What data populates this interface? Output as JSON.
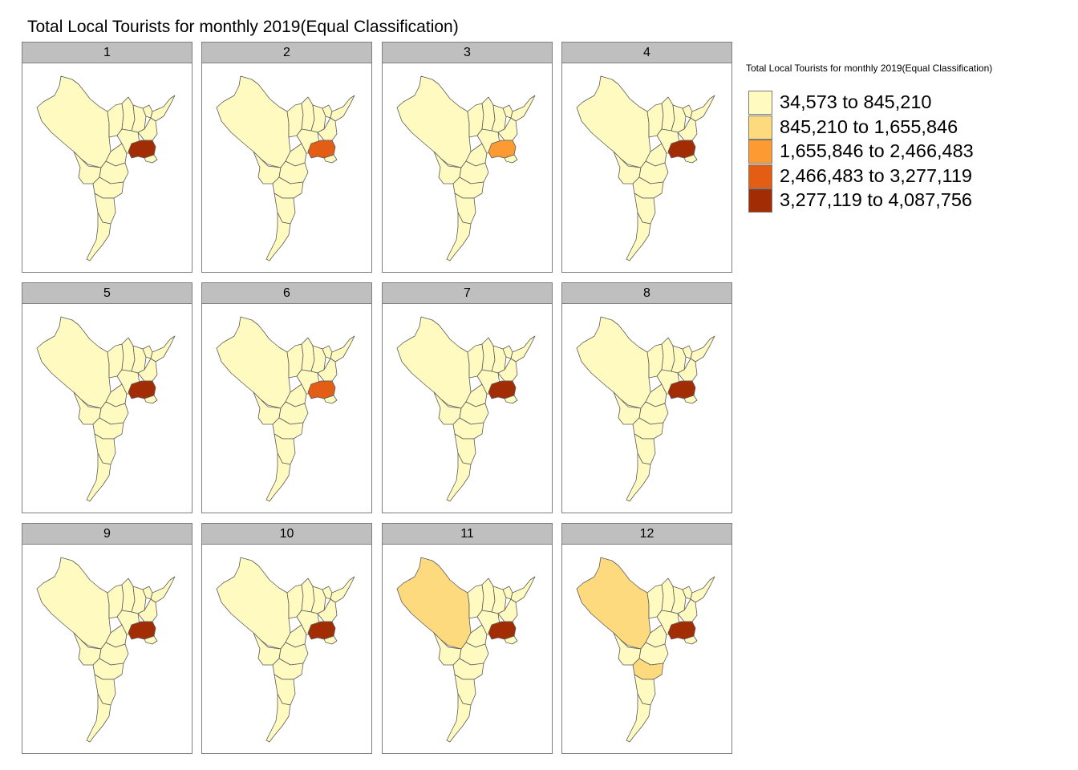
{
  "title": "Total Local Tourists for monthly 2019(Equal Classification)",
  "legend": {
    "title": "Total Local Tourists for monthly 2019(Equal Classification)",
    "classes": [
      {
        "label": "34,573 to 845,210",
        "color": "#FFFAC0"
      },
      {
        "label": "845,210 to 1,655,846",
        "color": "#FEDA7E"
      },
      {
        "label": "1,655,846 to 2,466,483",
        "color": "#FE9A32"
      },
      {
        "label": "2,466,483 to 3,277,119",
        "color": "#E35D14"
      },
      {
        "label": "3,277,119 to 4,087,756",
        "color": "#A22D05"
      }
    ]
  },
  "map": {
    "border_color": "#5a5a5a",
    "default_class": 0,
    "panels": [
      {
        "label": "1",
        "classes": {
          "central": 4
        }
      },
      {
        "label": "2",
        "classes": {
          "central": 3
        }
      },
      {
        "label": "3",
        "classes": {
          "central": 2
        }
      },
      {
        "label": "4",
        "classes": {
          "central": 4
        }
      },
      {
        "label": "5",
        "classes": {
          "central": 4
        }
      },
      {
        "label": "6",
        "classes": {
          "central": 3
        }
      },
      {
        "label": "7",
        "classes": {
          "central": 4
        }
      },
      {
        "label": "8",
        "classes": {
          "central": 4
        }
      },
      {
        "label": "9",
        "classes": {
          "central": 4
        }
      },
      {
        "label": "10",
        "classes": {
          "central": 4
        }
      },
      {
        "label": "11",
        "classes": {
          "central": 4,
          "northwest": 1
        }
      },
      {
        "label": "12",
        "classes": {
          "central": 4,
          "northwest": 1,
          "south_upper": 1
        }
      }
    ]
  }
}
